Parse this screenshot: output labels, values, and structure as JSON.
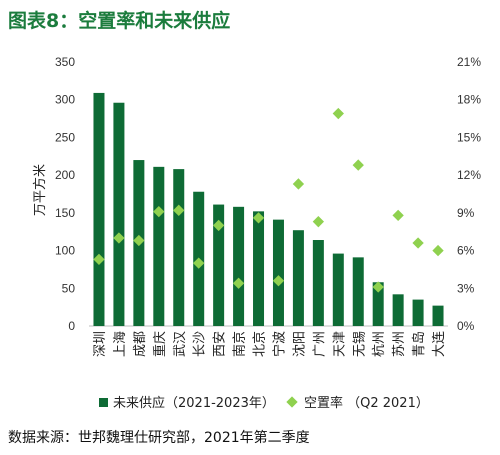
{
  "title": "图表8：空置率和未来供应",
  "source": "数据来源：世邦魏理仕研究部，2021年第二季度",
  "chart_data": {
    "type": "bar",
    "categories": [
      "深圳",
      "上海",
      "成都",
      "重庆",
      "武汉",
      "长沙",
      "西安",
      "南京",
      "北京",
      "宁波",
      "沈阳",
      "广州",
      "天津",
      "无锡",
      "杭州",
      "苏州",
      "青岛",
      "大连"
    ],
    "series": [
      {
        "name": "未来供应（2021-2023年）",
        "type": "bar",
        "axis": "left",
        "color": "#0e6b35",
        "values": [
          309,
          296,
          220,
          211,
          208,
          178,
          161,
          158,
          152,
          141,
          127,
          114,
          96,
          91,
          58,
          42,
          35,
          27
        ]
      },
      {
        "name": "空置率 （Q2 2021）",
        "type": "scatter",
        "axis": "right",
        "unit": "%",
        "color": "#8fd14f",
        "values": [
          5.3,
          7.0,
          6.8,
          9.1,
          9.2,
          5.0,
          8.0,
          3.4,
          8.6,
          3.6,
          11.3,
          8.3,
          16.9,
          12.8,
          3.1,
          8.8,
          6.6,
          6.0
        ]
      }
    ],
    "ylabel": "万平方米",
    "ylim": [
      0,
      350
    ],
    "yticks": [
      0,
      50,
      100,
      150,
      200,
      250,
      300,
      350
    ],
    "y2lim": [
      0,
      21
    ],
    "y2ticks": [
      "0%",
      "3%",
      "6%",
      "9%",
      "12%",
      "15%",
      "18%",
      "21%"
    ],
    "legend_position": "bottom"
  }
}
